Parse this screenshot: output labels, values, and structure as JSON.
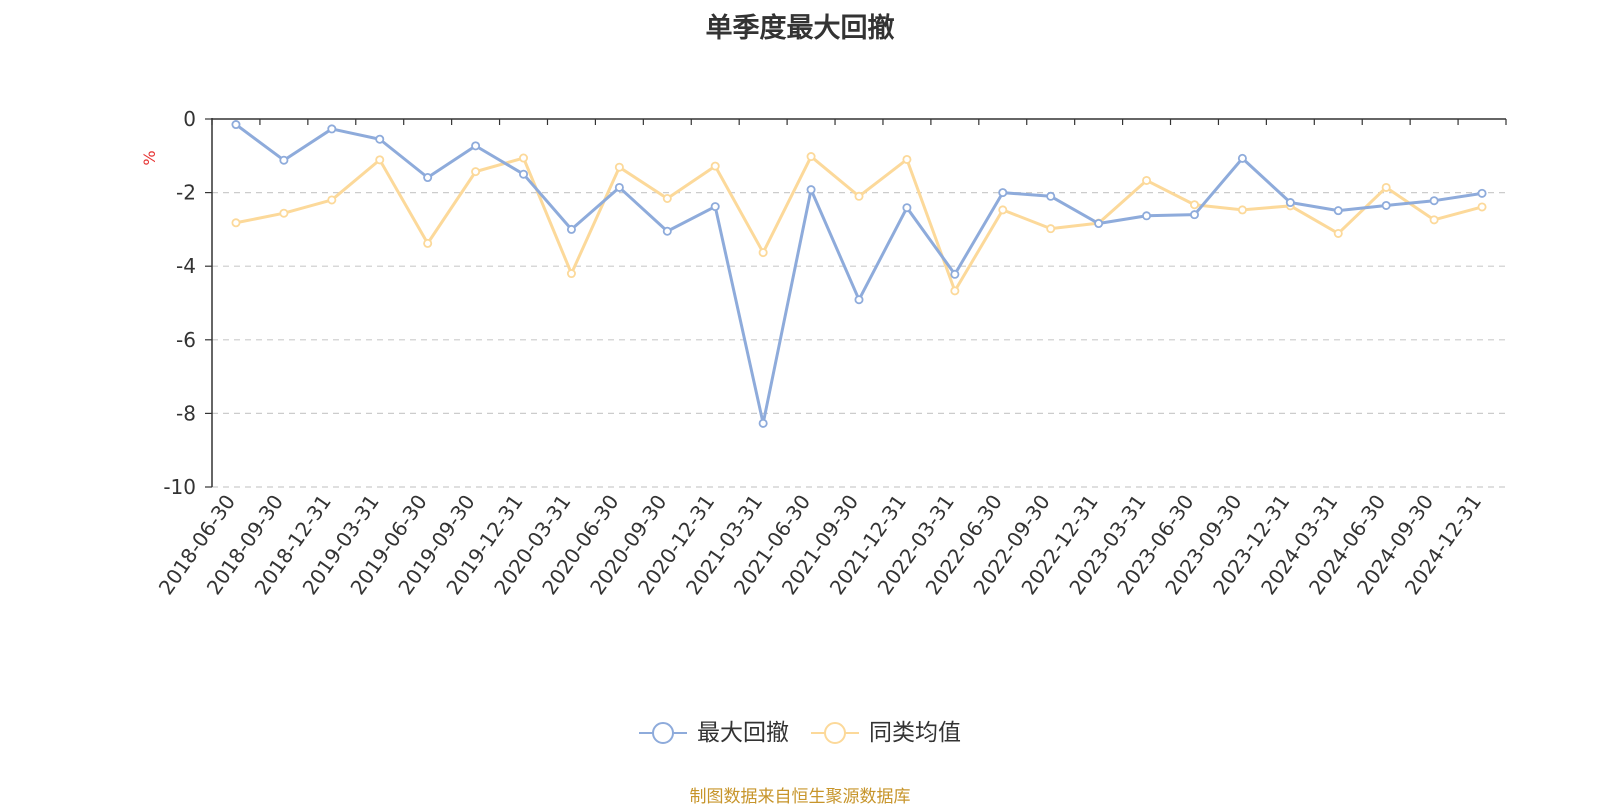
{
  "title": "单季度最大回撤",
  "source": "制图数据来自恒生聚源数据库",
  "chart_data": {
    "type": "line",
    "title": "单季度最大回撤",
    "ylabel": "%",
    "xlabel": "",
    "ylim": [
      -10,
      0
    ],
    "yticks": [
      0,
      -2,
      -4,
      -6,
      -8,
      -10
    ],
    "grid": true,
    "legend_position": "bottom",
    "categories": [
      "2018-06-30",
      "2018-09-30",
      "2018-12-31",
      "2019-03-31",
      "2019-06-30",
      "2019-09-30",
      "2019-12-31",
      "2020-03-31",
      "2020-06-30",
      "2020-09-30",
      "2020-12-31",
      "2021-03-31",
      "2021-06-30",
      "2021-09-30",
      "2021-12-31",
      "2022-03-31",
      "2022-06-30",
      "2022-09-30",
      "2022-12-31",
      "2023-03-31",
      "2023-06-30",
      "2023-09-30",
      "2023-12-31",
      "2024-03-31",
      "2024-06-30",
      "2024-09-30",
      "2024-12-31"
    ],
    "series": [
      {
        "name": "最大回撤",
        "color": "#8eabdb",
        "values": [
          -0.15,
          -1.12,
          -0.27,
          -0.55,
          -1.59,
          -0.73,
          -1.5,
          -3.0,
          -1.86,
          -3.05,
          -2.38,
          -8.27,
          -1.92,
          -4.91,
          -2.41,
          -4.22,
          -2.0,
          -2.1,
          -2.84,
          -2.63,
          -2.6,
          -1.07,
          -2.27,
          -2.49,
          -2.35,
          -2.22,
          -2.02
        ]
      },
      {
        "name": "同类均值",
        "color": "#fcd99a",
        "values": [
          -2.82,
          -2.56,
          -2.2,
          -1.11,
          -3.38,
          -1.43,
          -1.06,
          -4.2,
          -1.31,
          -2.16,
          -1.28,
          -3.63,
          -1.02,
          -2.1,
          -1.1,
          -4.67,
          -2.47,
          -2.98,
          -2.83,
          -1.67,
          -2.33,
          -2.47,
          -2.36,
          -3.11,
          -1.86,
          -2.74,
          -2.39
        ]
      }
    ]
  }
}
